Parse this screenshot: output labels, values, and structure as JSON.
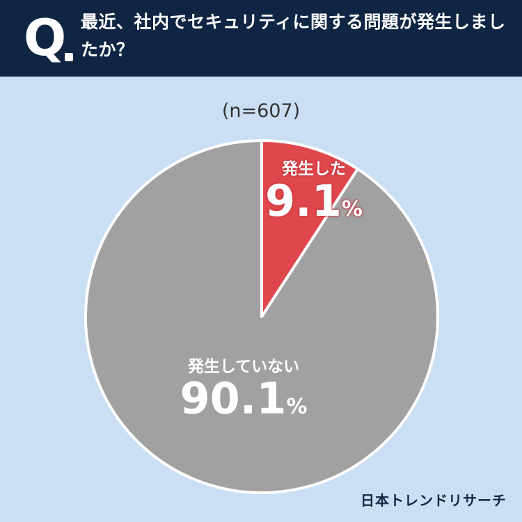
{
  "header": {
    "q_letter": "Q",
    "question": "最近、社内でセキュリティに関する問題が発生しましたか？"
  },
  "sample_size": "(n=607)",
  "chart_data": {
    "type": "pie",
    "title": "最近、社内でセキュリティに関する問題が発生しましたか？",
    "categories": [
      "発生した",
      "発生していない"
    ],
    "values": [
      9.1,
      90.1
    ],
    "unit": "%",
    "colors": [
      "#e0474c",
      "#a1a1a1"
    ]
  },
  "labels": [
    {
      "name": "発生した",
      "value": "9.1",
      "pct": "%"
    },
    {
      "name": "発生していない",
      "value": "90.1",
      "pct": "%"
    }
  ],
  "brand": "日本トレンドリサーチ"
}
